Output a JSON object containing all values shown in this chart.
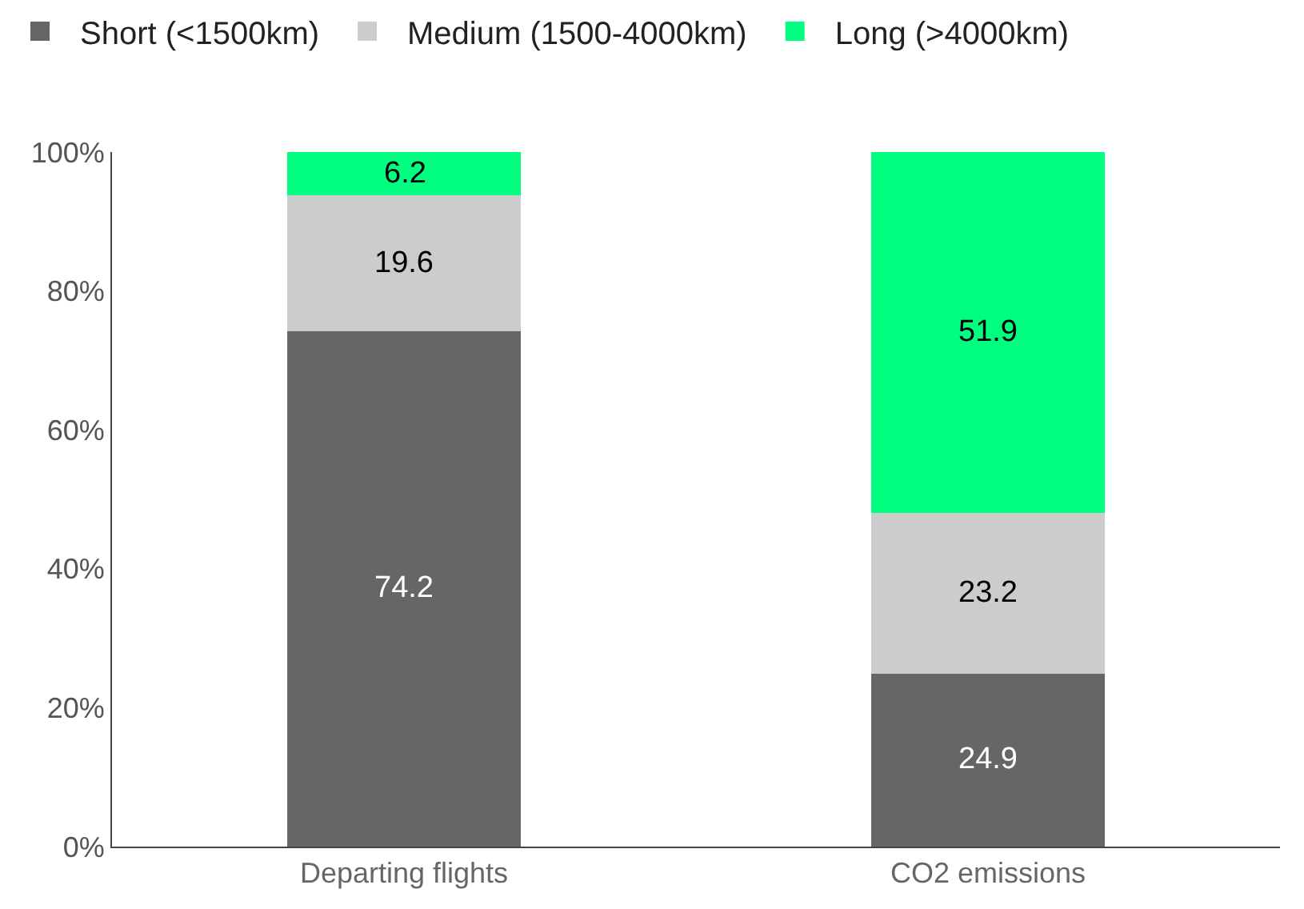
{
  "chart_data": {
    "type": "bar",
    "stacked": true,
    "categories": [
      "Departing flights",
      "CO2 emissions"
    ],
    "series": [
      {
        "name": "Short (<1500km)",
        "color": "#666666",
        "values": [
          74.2,
          24.9
        ]
      },
      {
        "name": "Medium (1500-4000km)",
        "color": "#cccccc",
        "values": [
          19.6,
          23.2
        ]
      },
      {
        "name": "Long (>4000km)",
        "color": "#00ff80",
        "values": [
          6.2,
          51.9
        ]
      }
    ],
    "ylim": [
      0,
      100
    ],
    "yticks": [
      {
        "value": 0,
        "label": "0%"
      },
      {
        "value": 20,
        "label": "20%"
      },
      {
        "value": 40,
        "label": "40%"
      },
      {
        "value": 60,
        "label": "60%"
      },
      {
        "value": 80,
        "label": "80%"
      },
      {
        "value": 100,
        "label": "100%"
      }
    ],
    "data_labels": true,
    "legend": "top left"
  }
}
